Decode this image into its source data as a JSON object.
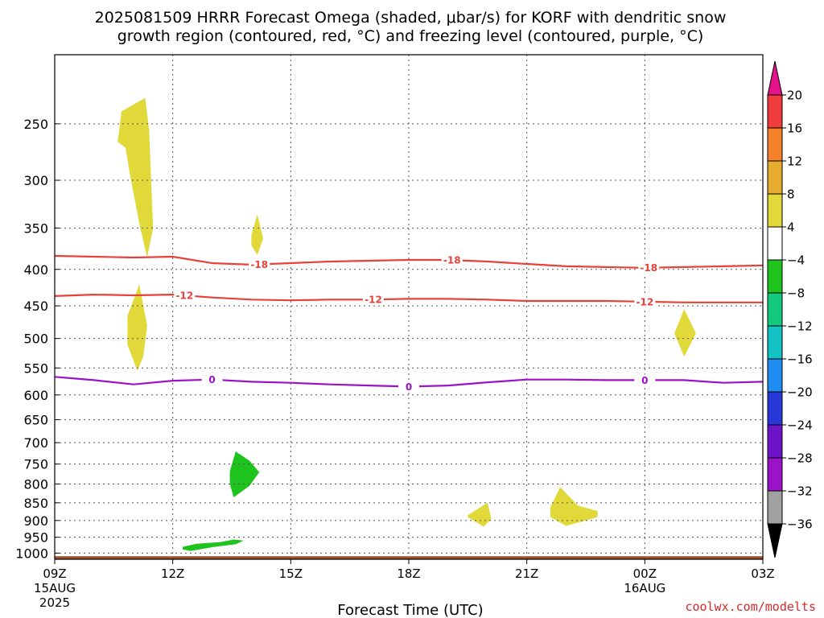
{
  "title_line1": "2025081509 HRRR Forecast Omega (shaded, μbar/s) for KORF with dendritic snow",
  "title_line2": "growth region (contoured, red, °C) and freezing level (contoured, purple, °C)",
  "credit": "coolwx.com/modelts",
  "chart_data": {
    "type": "time-height cross section",
    "xlabel": "Forecast Time (UTC)",
    "ylabel": "",
    "x_ticks": [
      {
        "hour": 0,
        "label": "09Z",
        "sub1": "15AUG",
        "sub2": "2025"
      },
      {
        "hour": 3,
        "label": "12Z",
        "sub1": "",
        "sub2": ""
      },
      {
        "hour": 6,
        "label": "15Z",
        "sub1": "",
        "sub2": ""
      },
      {
        "hour": 9,
        "label": "18Z",
        "sub1": "",
        "sub2": ""
      },
      {
        "hour": 12,
        "label": "21Z",
        "sub1": "",
        "sub2": ""
      },
      {
        "hour": 15,
        "label": "00Z",
        "sub1": "16AUG",
        "sub2": ""
      },
      {
        "hour": 18,
        "label": "03Z",
        "sub1": "",
        "sub2": ""
      }
    ],
    "xlim_hours": [
      0,
      18
    ],
    "y_scale": "log-pressure",
    "ylim_hPa": [
      1020,
      200
    ],
    "y_ticks_hPa": [
      250,
      300,
      350,
      400,
      450,
      500,
      550,
      600,
      650,
      700,
      750,
      800,
      850,
      900,
      950,
      1000
    ],
    "grid": true,
    "ground_color": "#a0522d",
    "ground_top_hPa": 1010,
    "contours": [
      {
        "label": "-18",
        "color": "#e8403a",
        "points": [
          [
            0,
            383
          ],
          [
            1,
            384
          ],
          [
            2,
            385
          ],
          [
            3,
            384
          ],
          [
            4,
            392
          ],
          [
            5,
            394
          ],
          [
            6,
            392
          ],
          [
            7,
            390
          ],
          [
            8,
            389
          ],
          [
            9,
            388
          ],
          [
            10,
            388
          ],
          [
            11,
            390
          ],
          [
            12,
            393
          ],
          [
            13,
            396
          ],
          [
            14,
            397
          ],
          [
            15,
            398
          ],
          [
            16,
            397
          ],
          [
            17,
            396
          ],
          [
            18,
            395
          ]
        ],
        "label_hours": [
          5.2,
          10.1,
          15.1
        ]
      },
      {
        "label": "-12",
        "color": "#e8403a",
        "points": [
          [
            0,
            436
          ],
          [
            1,
            434
          ],
          [
            2,
            435
          ],
          [
            3,
            434
          ],
          [
            4,
            438
          ],
          [
            5,
            441
          ],
          [
            6,
            442
          ],
          [
            7,
            441
          ],
          [
            8,
            441
          ],
          [
            9,
            440
          ],
          [
            10,
            440
          ],
          [
            11,
            441
          ],
          [
            12,
            443
          ],
          [
            13,
            443
          ],
          [
            14,
            443
          ],
          [
            15,
            444
          ],
          [
            16,
            445
          ],
          [
            17,
            445
          ],
          [
            18,
            445
          ]
        ],
        "label_hours": [
          3.3,
          8.1,
          15.0
        ]
      },
      {
        "label": "0",
        "color": "#9b12c8",
        "points": [
          [
            0,
            566
          ],
          [
            1,
            572
          ],
          [
            2,
            580
          ],
          [
            3,
            573
          ],
          [
            4,
            571
          ],
          [
            5,
            575
          ],
          [
            6,
            577
          ],
          [
            7,
            580
          ],
          [
            8,
            582
          ],
          [
            9,
            584
          ],
          [
            10,
            582
          ],
          [
            11,
            576
          ],
          [
            12,
            571
          ],
          [
            13,
            571
          ],
          [
            14,
            572
          ],
          [
            15,
            572
          ],
          [
            16,
            572
          ],
          [
            17,
            577
          ],
          [
            18,
            575
          ]
        ],
        "label_hours": [
          4.0,
          9.0,
          15.0
        ]
      }
    ],
    "shaded_regions": [
      {
        "color": "#e1d83a",
        "bin": "4 to 8",
        "points": [
          [
            1.6,
            265
          ],
          [
            1.7,
            240
          ],
          [
            2.3,
            230
          ],
          [
            2.4,
            255
          ],
          [
            2.45,
            300
          ],
          [
            2.5,
            350
          ],
          [
            2.35,
            385
          ],
          [
            2.15,
            345
          ],
          [
            1.9,
            292
          ],
          [
            1.8,
            270
          ]
        ]
      },
      {
        "color": "#e1d83a",
        "bin": "4 to 8",
        "points": [
          [
            5.0,
            358
          ],
          [
            5.15,
            335
          ],
          [
            5.3,
            362
          ],
          [
            5.15,
            382
          ],
          [
            5.0,
            370
          ]
        ]
      },
      {
        "color": "#e1d83a",
        "bin": "4 to 8",
        "points": [
          [
            1.85,
            465
          ],
          [
            2.15,
            420
          ],
          [
            2.35,
            480
          ],
          [
            2.25,
            530
          ],
          [
            2.1,
            555
          ],
          [
            1.85,
            510
          ]
        ]
      },
      {
        "color": "#e1d83a",
        "bin": "4 to 8",
        "points": [
          [
            15.75,
            492
          ],
          [
            16.0,
            455
          ],
          [
            16.3,
            492
          ],
          [
            16.0,
            530
          ]
        ]
      },
      {
        "color": "#e1d83a",
        "bin": "4 to 8",
        "points": [
          [
            10.5,
            885
          ],
          [
            11.0,
            850
          ],
          [
            11.1,
            895
          ],
          [
            10.9,
            918
          ],
          [
            10.5,
            890
          ]
        ]
      },
      {
        "color": "#e1d83a",
        "bin": "4 to 8",
        "points": [
          [
            12.6,
            862
          ],
          [
            12.85,
            808
          ],
          [
            13.3,
            858
          ],
          [
            13.8,
            873
          ],
          [
            13.8,
            890
          ],
          [
            13.0,
            916
          ],
          [
            12.6,
            890
          ]
        ]
      },
      {
        "color": "#1ec31e",
        "bin": "-8 to -4",
        "points": [
          [
            4.45,
            768
          ],
          [
            4.6,
            720
          ],
          [
            4.95,
            742
          ],
          [
            5.2,
            770
          ],
          [
            4.95,
            805
          ],
          [
            4.55,
            835
          ],
          [
            4.45,
            800
          ]
        ]
      },
      {
        "color": "#1ec31e",
        "bin": "-8 to -4",
        "points": [
          [
            3.25,
            980
          ],
          [
            3.6,
            970
          ],
          [
            4.2,
            965
          ],
          [
            4.55,
            957
          ],
          [
            4.8,
            960
          ],
          [
            4.6,
            972
          ],
          [
            4.05,
            980
          ],
          [
            3.45,
            993
          ],
          [
            3.25,
            988
          ]
        ]
      }
    ],
    "colorbar": {
      "labels": [
        "20",
        "16",
        "12",
        "8",
        "4",
        "−4",
        "−8",
        "−12",
        "−16",
        "−20",
        "−24",
        "−28",
        "−32",
        "−36"
      ],
      "top_color": "#e4128a",
      "bottom_color": "#000000",
      "segments": [
        "#f03c3c",
        "#f5822a",
        "#e6ac30",
        "#e1d83a",
        "#ffffff",
        "#1ec31e",
        "#14c87d",
        "#14c3c3",
        "#1e8cf0",
        "#2837d7",
        "#6e14c8",
        "#9b12c8",
        "#a0a0a0"
      ]
    }
  }
}
